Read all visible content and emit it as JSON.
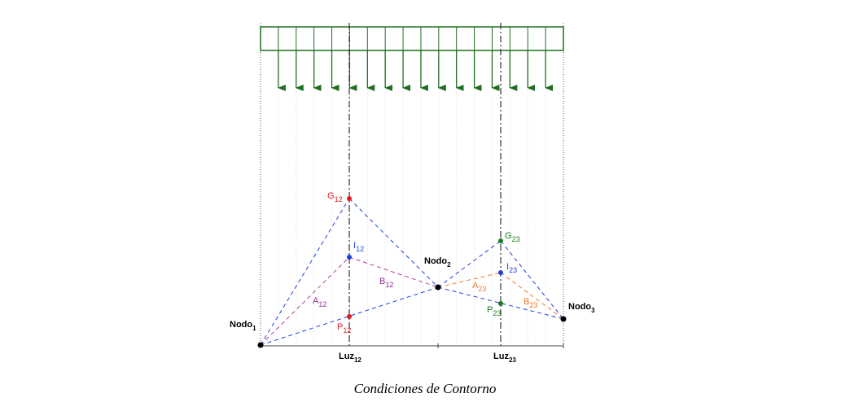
{
  "caption": "Condiciones de Contorno",
  "colors": {
    "load": "#1f6e1f",
    "red": "#e41a1c",
    "blue": "#1f3fe0",
    "purple": "#8b2f8b",
    "orange": "#f07a28",
    "green": "#1b7a1b",
    "black": "#000000"
  },
  "labels": {
    "nodo1": {
      "base": "Nodo",
      "sub": "1"
    },
    "nodo2": {
      "base": "Nodo",
      "sub": "2"
    },
    "nodo3": {
      "base": "Nodo",
      "sub": "3"
    },
    "luz12": {
      "base": "Luz",
      "sub": "12"
    },
    "luz23": {
      "base": "Luz",
      "sub": "23"
    },
    "g12": {
      "base": "G",
      "sub": "12"
    },
    "i12": {
      "base": "I",
      "sub": "12"
    },
    "b12": {
      "base": "B",
      "sub": "12"
    },
    "a12": {
      "base": "A",
      "sub": "12"
    },
    "p12": {
      "base": "P",
      "sub": "12"
    },
    "g23": {
      "base": "G",
      "sub": "23"
    },
    "i23": {
      "base": "I",
      "sub": "23"
    },
    "a23": {
      "base": "A",
      "sub": "23"
    },
    "b23": {
      "base": "B",
      "sub": "23"
    },
    "p23": {
      "base": "P",
      "sub": "23"
    }
  }
}
